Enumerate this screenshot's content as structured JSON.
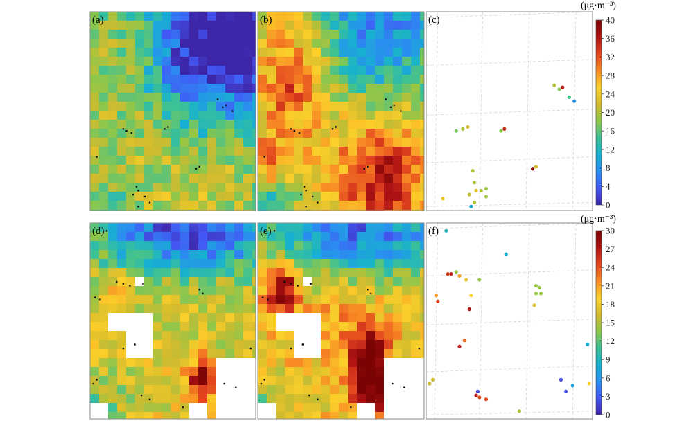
{
  "chart_data": [
    {
      "type": "heatmap",
      "panel": "(a)",
      "row": 0,
      "pattern": "a",
      "colorbar": "top"
    },
    {
      "type": "heatmap",
      "panel": "(b)",
      "row": 0,
      "pattern": "b",
      "colorbar": "top"
    },
    {
      "type": "scatter",
      "panel": "(c)",
      "row": 0,
      "colorbar": "top",
      "points": [
        {
          "x": 0.1,
          "y": 0.06,
          "v": 24
        },
        {
          "x": 0.18,
          "y": 0.4,
          "v": 17
        },
        {
          "x": 0.22,
          "y": 0.41,
          "v": 20
        },
        {
          "x": 0.25,
          "y": 0.42,
          "v": 22
        },
        {
          "x": 0.45,
          "y": 0.4,
          "v": 18
        },
        {
          "x": 0.47,
          "y": 0.41,
          "v": 35
        },
        {
          "x": 0.77,
          "y": 0.63,
          "v": 20
        },
        {
          "x": 0.8,
          "y": 0.61,
          "v": 18
        },
        {
          "x": 0.82,
          "y": 0.62,
          "v": 36
        },
        {
          "x": 0.86,
          "y": 0.57,
          "v": 15
        },
        {
          "x": 0.89,
          "y": 0.55,
          "v": 8
        },
        {
          "x": 0.66,
          "y": 0.22,
          "v": 22
        },
        {
          "x": 0.64,
          "y": 0.21,
          "v": 40
        },
        {
          "x": 0.28,
          "y": 0.2,
          "v": 20
        },
        {
          "x": 0.29,
          "y": 0.14,
          "v": 20
        },
        {
          "x": 0.3,
          "y": 0.1,
          "v": 23
        },
        {
          "x": 0.26,
          "y": 0.08,
          "v": 21
        },
        {
          "x": 0.33,
          "y": 0.1,
          "v": 20
        },
        {
          "x": 0.36,
          "y": 0.11,
          "v": 19
        },
        {
          "x": 0.36,
          "y": 0.07,
          "v": 19
        },
        {
          "x": 0.29,
          "y": 0.04,
          "v": 20
        },
        {
          "x": 0.27,
          "y": 0.02,
          "v": 10
        }
      ]
    },
    {
      "type": "heatmap",
      "panel": "(d)",
      "row": 1,
      "pattern": "d",
      "colorbar": "bottom"
    },
    {
      "type": "heatmap",
      "panel": "(e)",
      "row": 1,
      "pattern": "e",
      "colorbar": "bottom"
    },
    {
      "type": "scatter",
      "panel": "(f)",
      "row": 1,
      "colorbar": "bottom",
      "points": [
        {
          "x": 0.12,
          "y": 0.96,
          "v": 9
        },
        {
          "x": 0.48,
          "y": 0.84,
          "v": 8
        },
        {
          "x": 0.13,
          "y": 0.74,
          "v": 25
        },
        {
          "x": 0.15,
          "y": 0.74,
          "v": 26
        },
        {
          "x": 0.18,
          "y": 0.75,
          "v": 14
        },
        {
          "x": 0.2,
          "y": 0.73,
          "v": 21
        },
        {
          "x": 0.24,
          "y": 0.71,
          "v": 18
        },
        {
          "x": 0.32,
          "y": 0.71,
          "v": 14
        },
        {
          "x": 0.06,
          "y": 0.63,
          "v": 21
        },
        {
          "x": 0.07,
          "y": 0.6,
          "v": 25
        },
        {
          "x": 0.27,
          "y": 0.63,
          "v": 19
        },
        {
          "x": 0.26,
          "y": 0.56,
          "v": 27
        },
        {
          "x": 0.23,
          "y": 0.4,
          "v": 23
        },
        {
          "x": 0.2,
          "y": 0.37,
          "v": 27
        },
        {
          "x": 0.66,
          "y": 0.68,
          "v": 14
        },
        {
          "x": 0.68,
          "y": 0.67,
          "v": 14
        },
        {
          "x": 0.66,
          "y": 0.64,
          "v": 14
        },
        {
          "x": 0.69,
          "y": 0.64,
          "v": 14
        },
        {
          "x": 0.65,
          "y": 0.58,
          "v": 17
        },
        {
          "x": 0.97,
          "y": 0.38,
          "v": 8
        },
        {
          "x": 0.81,
          "y": 0.2,
          "v": 2
        },
        {
          "x": 0.88,
          "y": 0.17,
          "v": 7
        },
        {
          "x": 0.84,
          "y": 0.14,
          "v": 2
        },
        {
          "x": 0.98,
          "y": 0.18,
          "v": 19
        },
        {
          "x": 0.02,
          "y": 0.18,
          "v": 16
        },
        {
          "x": 0.04,
          "y": 0.2,
          "v": 16
        },
        {
          "x": 0.31,
          "y": 0.14,
          "v": 2
        },
        {
          "x": 0.3,
          "y": 0.12,
          "v": 27
        },
        {
          "x": 0.32,
          "y": 0.11,
          "v": 24
        },
        {
          "x": 0.36,
          "y": 0.1,
          "v": 25
        },
        {
          "x": 0.56,
          "y": 0.04,
          "v": 15
        }
      ]
    }
  ],
  "colorbars": {
    "top": {
      "unit": "(μg·m⁻³)",
      "min": 0,
      "max": 40,
      "ticks": [
        0,
        4,
        8,
        12,
        16,
        20,
        24,
        28,
        32,
        36,
        40
      ]
    },
    "bottom": {
      "unit": "(μg·m⁻³)",
      "min": 0,
      "max": 30,
      "ticks": [
        0,
        3,
        6,
        9,
        12,
        15,
        18,
        21,
        24,
        27,
        30
      ]
    }
  },
  "colors": {
    "colormap": [
      "#3e26a8",
      "#4358f5",
      "#2a8ef0",
      "#17b1cf",
      "#3ec194",
      "#8fc64a",
      "#d2bb2e",
      "#fbcf2a",
      "#f88a24",
      "#e2451e",
      "#ae1314",
      "#7a0403"
    ],
    "panel_border": "#888888",
    "grid": "#d6d6d6"
  }
}
